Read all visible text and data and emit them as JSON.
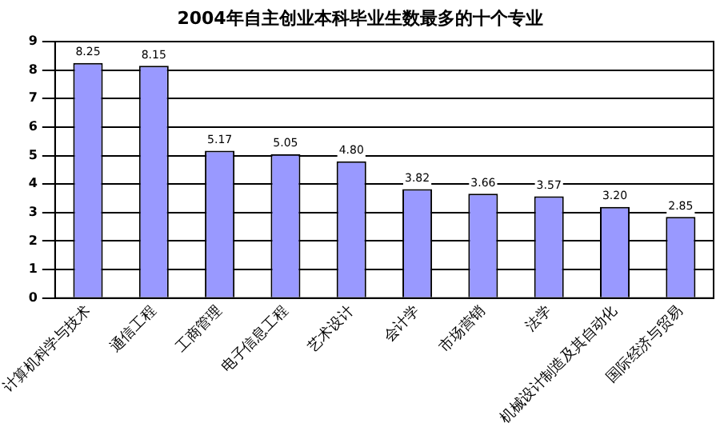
{
  "chart_data": {
    "type": "bar",
    "title": "2004年自主创业本科毕业生数最多的十个专业",
    "categories": [
      "计算机科学与技术",
      "通信工程",
      "工商管理",
      "电子信息工程",
      "艺术设计",
      "会计学",
      "市场营销",
      "法学",
      "机械设计制造及其自动化",
      "国际经济与贸易"
    ],
    "values": [
      8.25,
      8.15,
      5.17,
      5.05,
      4.8,
      3.82,
      3.66,
      3.57,
      3.2,
      2.85
    ],
    "value_labels": [
      "8.25",
      "8.15",
      "5.17",
      "5.05",
      "4.80",
      "3.82",
      "3.66",
      "3.57",
      "3.20",
      "2.85"
    ],
    "color": "#9999ff",
    "ylim": [
      0,
      9
    ],
    "yticks": [
      0,
      1,
      2,
      3,
      4,
      5,
      6,
      7,
      8,
      9
    ],
    "grid": "y"
  }
}
